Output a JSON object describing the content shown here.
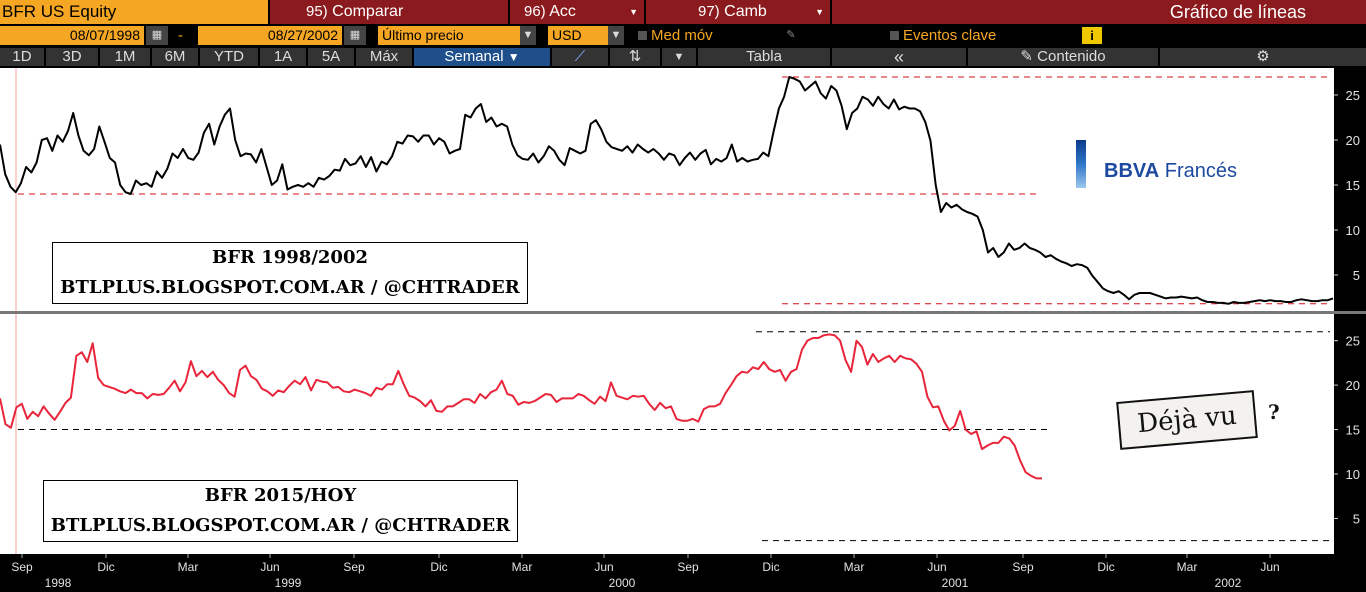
{
  "header": {
    "ticker": "BFR US Equity",
    "menu": [
      {
        "num": "95)",
        "label": "Comparar"
      },
      {
        "num": "96)",
        "label": "Acc"
      },
      {
        "num": "97)",
        "label": "Camb"
      }
    ],
    "title": "Gráfico de líneas"
  },
  "controls": {
    "start_date": "08/07/1998",
    "date_sep": "-",
    "end_date": "08/27/2002",
    "price_type": "Último precio",
    "currency": "USD",
    "moving_avg": "Med móv",
    "key_events": "Eventos clave",
    "info_icon": "i"
  },
  "periods": {
    "items": [
      "1D",
      "3D",
      "1M",
      "6M",
      "YTD",
      "1A",
      "5A",
      "Máx"
    ],
    "selected": "Semanal",
    "table": "Tabla",
    "collapse": "«",
    "content": "Contenido"
  },
  "labels": {
    "top_title": "BFR 1998/2002",
    "top_sub": "BTLPLUS.BLOGSPOT.COM.AR / @CHTRADER",
    "bottom_title": "BFR 2015/HOY",
    "bottom_sub": "BTLPLUS.BLOGSPOT.COM.AR / @CHTRADER",
    "logo": "BBVA Francés",
    "logo_bold": "BBVA",
    "logo_rest": " Francés",
    "dejavu": "Déjà vu",
    "dejavu_q": "?"
  },
  "colors": {
    "top_line": "#000000",
    "bottom_line": "#e8253a",
    "ref_top": "#d0101a",
    "ref_bottom": "#000000",
    "accent": "#f5a623",
    "menu_bg": "#8b1a1e"
  },
  "chart_data": [
    {
      "type": "line",
      "title": "BFR 1998/2002",
      "ylim": [
        1,
        28
      ],
      "yticks": [
        5,
        10,
        15,
        20,
        25
      ],
      "ref_lines": [
        27,
        14,
        1.8
      ],
      "series": [
        {
          "color": "#000000",
          "values": [
            19.5,
            16.2,
            14.8,
            14.2,
            15.2,
            17.0,
            16.4,
            17.5,
            20.0,
            20.2,
            18.8,
            20.5,
            19.8,
            21.0,
            23.0,
            20.5,
            18.8,
            18.3,
            19.0,
            21.5,
            19.8,
            18.0,
            17.5,
            15.0,
            14.2,
            14.0,
            15.5,
            15.0,
            15.2,
            14.8,
            16.5,
            15.8,
            16.8,
            18.5,
            18.0,
            19.0,
            18.0,
            17.8,
            18.6,
            20.8,
            21.8,
            19.5,
            21.5,
            22.8,
            23.5,
            20.0,
            18.2,
            18.5,
            18.4,
            17.5,
            19.0,
            17.0,
            15.0,
            15.5,
            17.3,
            14.5,
            14.8,
            15.0,
            14.8,
            15.2,
            14.8,
            15.8,
            15.6,
            16.0,
            16.7,
            16.6,
            17.9,
            17.2,
            17.4,
            18.2,
            17.0,
            18.1,
            16.5,
            17.6,
            17.3,
            18.2,
            19.8,
            19.6,
            20.5,
            20.4,
            19.8,
            20.5,
            20.5,
            19.5,
            20.2,
            19.8,
            18.5,
            18.8,
            19.0,
            22.8,
            22.5,
            23.5,
            24.0,
            22.0,
            22.5,
            21.5,
            21.8,
            21.5,
            19.5,
            18.3,
            17.9,
            17.8,
            18.5,
            17.5,
            18.2,
            19.3,
            18.8,
            17.8,
            17.2,
            19.1,
            18.8,
            18.5,
            18.8,
            21.8,
            22.2,
            21.2,
            19.8,
            19.2,
            19.0,
            18.8,
            19.3,
            18.6,
            19.5,
            19.0,
            18.6,
            19.0,
            18.5,
            17.8,
            18.5,
            18.3,
            17.2,
            18.0,
            18.6,
            17.8,
            18.5,
            18.9,
            17.3,
            17.9,
            17.6,
            18.0,
            19.5,
            17.6,
            18.0,
            17.6,
            17.8,
            17.9,
            18.6,
            18.2,
            21.0,
            23.5,
            24.8,
            27.0,
            26.8,
            26.5,
            25.5,
            26.0,
            26.5,
            25.2,
            24.6,
            26.0,
            25.5,
            23.8,
            21.2,
            23.0,
            23.5,
            24.8,
            24.5,
            23.8,
            24.8,
            24.0,
            23.5,
            24.5,
            23.4,
            23.7,
            23.5,
            23.5,
            23.2,
            22.0,
            19.9,
            15.0,
            12.0,
            13.0,
            12.5,
            12.8,
            12.3,
            12.0,
            11.8,
            11.5,
            10.0,
            7.5,
            8.0,
            7.0,
            7.5,
            8.5,
            7.8,
            8.0,
            8.5,
            8.0,
            7.8,
            7.5,
            7.0,
            7.2,
            6.8,
            6.5,
            6.3,
            6.0,
            6.2,
            6.1,
            5.8,
            4.9,
            4.2,
            3.5,
            3.2,
            3.0,
            3.2,
            2.8,
            2.3,
            2.8,
            3.0,
            3.0,
            3.0,
            2.8,
            2.6,
            2.4,
            2.5,
            2.5,
            2.6,
            2.5,
            2.4,
            2.5,
            2.2,
            2.0,
            2.0,
            1.9,
            1.9,
            1.8,
            2.0,
            1.9,
            1.9,
            2.0,
            2.1,
            2.2,
            2.1,
            2.2,
            2.1,
            2.1,
            2.0,
            2.0,
            2.2,
            2.3,
            2.2,
            2.1,
            2.1,
            2.2,
            2.2,
            2.4
          ]
        }
      ]
    },
    {
      "type": "line",
      "title": "BFR 2015/HOY",
      "ylim": [
        1,
        28
      ],
      "yticks": [
        5,
        10,
        15,
        20,
        25
      ],
      "ref_lines": [
        26,
        15,
        2.5
      ],
      "series": [
        {
          "color": "#e8253a",
          "values": [
            18.5,
            15.6,
            15.2,
            17.5,
            17.9,
            16.2,
            17.0,
            16.5,
            17.6,
            16.8,
            16.1,
            17.0,
            18.0,
            18.6,
            23.3,
            23.7,
            22.6,
            24.7,
            20.8,
            20.0,
            19.8,
            19.6,
            19.3,
            19.1,
            19.5,
            19.1,
            19.1,
            18.5,
            19.0,
            18.9,
            19.0,
            19.7,
            20.5,
            19.3,
            20.3,
            22.7,
            21.0,
            21.6,
            20.9,
            21.5,
            20.6,
            20.0,
            19.1,
            18.7,
            21.7,
            22.2,
            21.0,
            20.6,
            19.6,
            19.3,
            18.8,
            19.4,
            19.2,
            19.9,
            20.5,
            20.1,
            20.9,
            19.4,
            20.6,
            20.4,
            20.3,
            19.7,
            19.8,
            19.3,
            19.2,
            19.5,
            19.3,
            19.1,
            18.8,
            19.7,
            19.5,
            20.1,
            20.1,
            21.6,
            20.1,
            18.8,
            18.6,
            18.2,
            17.6,
            18.3,
            17.1,
            17.0,
            17.6,
            17.6,
            18.0,
            18.4,
            18.4,
            18.0,
            19.0,
            18.5,
            19.2,
            19.5,
            20.5,
            19.0,
            18.8,
            17.8,
            18.1,
            18.0,
            18.2,
            18.6,
            19.0,
            18.9,
            18.1,
            18.5,
            18.5,
            18.5,
            19.0,
            18.8,
            18.3,
            17.9,
            18.7,
            18.2,
            20.3,
            18.8,
            18.6,
            18.4,
            18.8,
            18.7,
            18.8,
            17.9,
            17.2,
            18.0,
            17.4,
            17.6,
            16.2,
            16.0,
            16.0,
            16.2,
            15.9,
            17.3,
            17.6,
            17.6,
            17.9,
            19.1,
            20.0,
            21.0,
            21.5,
            21.4,
            22.0,
            21.8,
            22.6,
            21.8,
            21.5,
            21.7,
            20.5,
            21.5,
            21.8,
            24.0,
            25.0,
            25.3,
            25.3,
            25.6,
            25.7,
            25.6,
            25.0,
            22.8,
            21.5,
            25.0,
            24.3,
            22.3,
            23.5,
            22.6,
            23.0,
            23.3,
            22.6,
            23.3,
            23.0,
            22.9,
            22.4,
            21.5,
            18.7,
            17.5,
            17.6,
            16.0,
            14.9,
            15.4,
            17.1,
            15.0,
            14.5,
            14.8,
            12.8,
            13.2,
            13.5,
            13.5,
            14.2,
            14.0,
            13.2,
            11.5,
            10.2,
            9.8,
            9.5,
            9.5
          ]
        }
      ]
    }
  ],
  "x_axis": {
    "ticks": [
      {
        "label": "Sep"
      },
      {
        "label": "Dic"
      },
      {
        "label": "Mar"
      },
      {
        "label": "Jun"
      },
      {
        "label": "Sep"
      },
      {
        "label": "Dic"
      },
      {
        "label": "Mar"
      },
      {
        "label": "Jun"
      },
      {
        "label": "Sep"
      },
      {
        "label": "Dic"
      },
      {
        "label": "Mar"
      },
      {
        "label": "Jun"
      },
      {
        "label": "Sep"
      },
      {
        "label": "Dic"
      },
      {
        "label": "Mar"
      },
      {
        "label": "Jun"
      }
    ],
    "years": [
      "1998",
      "1999",
      "2000",
      "2001",
      "2002"
    ]
  }
}
